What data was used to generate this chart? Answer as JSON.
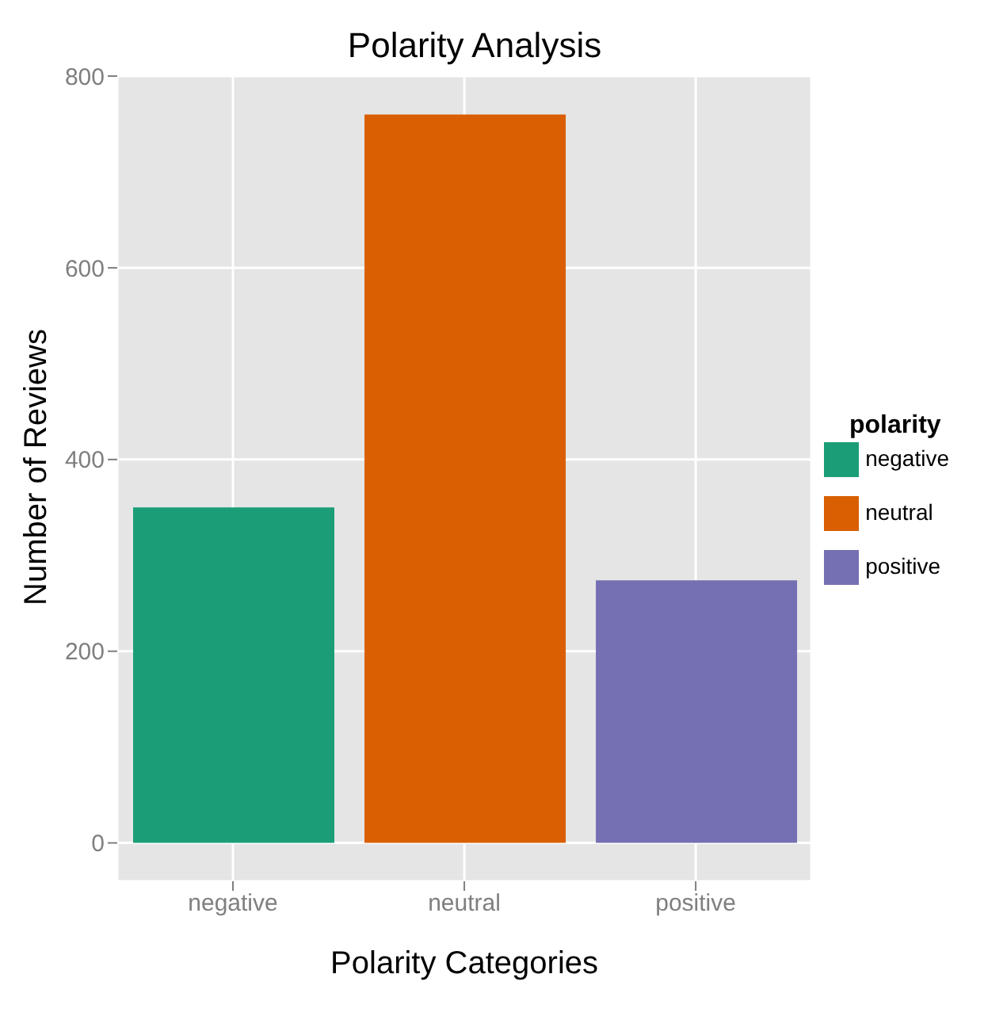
{
  "chart_data": {
    "type": "bar",
    "title": "Polarity Analysis",
    "xlabel": "Polarity Categories",
    "ylabel": "Number of Reviews",
    "legend_title": "polarity",
    "legend": "right",
    "categories": [
      "negative",
      "neutral",
      "positive"
    ],
    "series": [
      {
        "name": "negative",
        "color": "#1b9e77",
        "values": [
          350,
          null,
          null
        ]
      },
      {
        "name": "neutral",
        "color": "#d95f02",
        "values": [
          null,
          760,
          null
        ]
      },
      {
        "name": "positive",
        "color": "#7570b3",
        "values": [
          null,
          null,
          274
        ]
      }
    ],
    "stacked": true,
    "ylim": [
      -40,
      800
    ],
    "yticks": [
      0,
      200,
      400,
      600,
      800
    ],
    "grid": true
  }
}
